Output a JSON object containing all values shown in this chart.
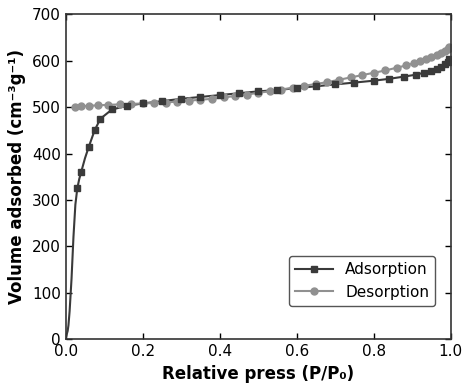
{
  "adsorption_x": [
    0.0005,
    0.001,
    0.002,
    0.003,
    0.005,
    0.007,
    0.01,
    0.015,
    0.02,
    0.025,
    0.03,
    0.035,
    0.04,
    0.05,
    0.06,
    0.075,
    0.09,
    0.12,
    0.16,
    0.2,
    0.25,
    0.3,
    0.35,
    0.4,
    0.45,
    0.5,
    0.55,
    0.6,
    0.65,
    0.7,
    0.75,
    0.8,
    0.84,
    0.88,
    0.91,
    0.93,
    0.95,
    0.965,
    0.975,
    0.985,
    0.992,
    0.997
  ],
  "adsorption_y": [
    3,
    5,
    8,
    12,
    18,
    30,
    60,
    130,
    220,
    290,
    325,
    345,
    360,
    390,
    415,
    450,
    475,
    495,
    503,
    508,
    513,
    518,
    522,
    526,
    530,
    534,
    537,
    541,
    545,
    549,
    553,
    557,
    561,
    566,
    570,
    574,
    578,
    583,
    587,
    592,
    597,
    603
  ],
  "desorption_x": [
    0.997,
    0.992,
    0.985,
    0.975,
    0.965,
    0.95,
    0.935,
    0.92,
    0.905,
    0.885,
    0.86,
    0.83,
    0.8,
    0.77,
    0.74,
    0.71,
    0.68,
    0.65,
    0.62,
    0.59,
    0.56,
    0.53,
    0.5,
    0.47,
    0.44,
    0.41,
    0.38,
    0.35,
    0.32,
    0.29,
    0.26,
    0.23,
    0.2,
    0.17,
    0.14,
    0.11,
    0.085,
    0.06,
    0.04,
    0.025
  ],
  "desorption_y": [
    630,
    626,
    622,
    617,
    613,
    608,
    603,
    599,
    595,
    590,
    585,
    579,
    574,
    569,
    564,
    559,
    554,
    550,
    546,
    542,
    538,
    534,
    531,
    527,
    524,
    521,
    518,
    516,
    514,
    512,
    510,
    509,
    508,
    507,
    506,
    505,
    504,
    503,
    502,
    500
  ],
  "adsorption_color": "#3a3a3a",
  "desorption_color": "#909090",
  "xlim": [
    0.0,
    1.0
  ],
  "ylim": [
    0,
    700
  ],
  "xlabel": "Relative press (P/P₀)",
  "ylabel": "Volume adsorbed (cm⁻³g⁻¹)",
  "xticks": [
    0.0,
    0.2,
    0.4,
    0.6,
    0.8,
    1.0
  ],
  "yticks": [
    0,
    100,
    200,
    300,
    400,
    500,
    600,
    700
  ],
  "legend_adsorption": "Adsorption",
  "legend_desorption": "Desorption",
  "marker_adsorption": "s",
  "marker_desorption": "o",
  "linewidth": 1.5,
  "markersize_ads": 4,
  "markersize_des": 5,
  "bg_color": "#ffffff",
  "tick_label_fontsize": 11,
  "axis_label_fontsize": 12,
  "legend_fontsize": 11
}
